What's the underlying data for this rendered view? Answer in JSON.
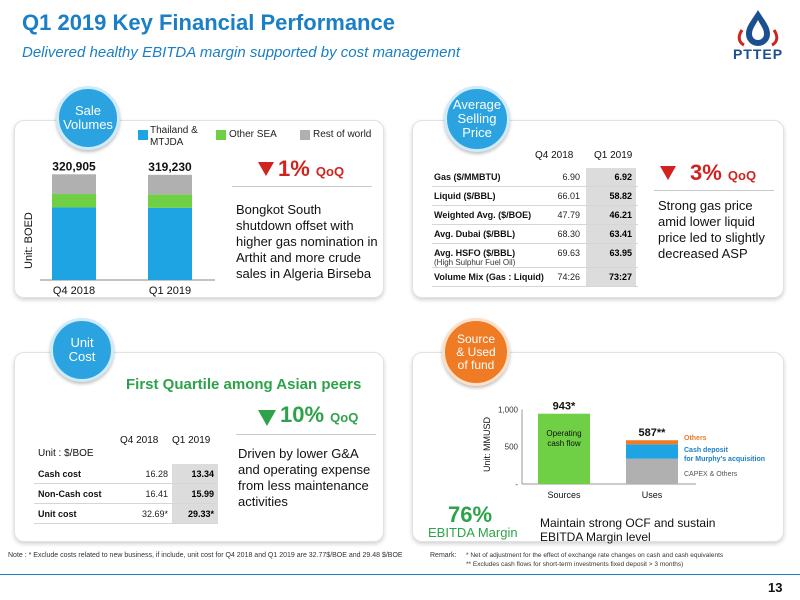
{
  "header": {
    "title": "Q1 2019 Key Financial Performance",
    "subtitle": "Delivered healthy EBITDA margin supported by cost management",
    "logo_text": "PTTEP"
  },
  "colors": {
    "accent_blue": "#1a7fc4",
    "orange": "#ef7b24",
    "down_red": "#d0231f",
    "down_green": "#2ea24a"
  },
  "sale_volumes": {
    "badge": [
      "Sale",
      "Volumes"
    ],
    "unit": "Unit: BOED",
    "legend": [
      "Thailand & MTJDA",
      "Other SEA",
      "Rest of world"
    ],
    "qoq_value": "1%",
    "qoq_label": "QoQ",
    "text": "Bongkot South shutdown offset with higher gas nomination in Arthit and more crude sales in Algeria Birseba"
  },
  "asp": {
    "badge": [
      "Average",
      "Selling",
      "Price"
    ],
    "col_q4": "Q4 2018",
    "col_q1": "Q1 2019",
    "rows": [
      {
        "label": "Gas ($/MMBTU)",
        "sub": "",
        "q4": "6.90",
        "q1": "6.92"
      },
      {
        "label": "Liquid ($/BBL)",
        "sub": "",
        "q4": "66.01",
        "q1": "58.82"
      },
      {
        "label": "Weighted Avg. ($/BOE)",
        "sub": "",
        "q4": "47.79",
        "q1": "46.21"
      },
      {
        "label": "Avg. Dubai ($/BBL)",
        "sub": "",
        "q4": "68.30",
        "q1": "63.41"
      },
      {
        "label": "Avg. HSFO ($/BBL)",
        "sub": "(High Sulphur Fuel Oil)",
        "q4": "69.63",
        "q1": "63.95"
      },
      {
        "label": "Volume Mix (Gas : Liquid)",
        "sub": "",
        "q4": "74:26",
        "q1": "73:27"
      }
    ],
    "qoq_value": "3%",
    "qoq_label": "QoQ",
    "text": "Strong gas price amid lower liquid price led to slightly decreased ASP"
  },
  "unit_cost": {
    "badge": [
      "Unit",
      "Cost"
    ],
    "headline": "First Quartile among Asian peers",
    "unit": "Unit : $/BOE",
    "col_q4": "Q4 2018",
    "col_q1": "Q1 2019",
    "rows": [
      {
        "label": "Cash cost",
        "q4": "16.28",
        "q1": "13.34"
      },
      {
        "label": "Non-Cash cost",
        "q4": "16.41",
        "q1": "15.99"
      },
      {
        "label": "Unit cost",
        "q4": "32.69*",
        "q1": "29.33*"
      }
    ],
    "qoq_value": "10%",
    "qoq_label": "QoQ",
    "text": "Driven by lower G&A and operating expense from less maintenance activities",
    "note": "Note : * Exclude costs related to new business, if include, unit cost for Q4 2018 and Q1 2019 are 32.77$/BOE and 29.48 $/BOE"
  },
  "source_use": {
    "badge": [
      "Source",
      "& Used",
      "of fund"
    ],
    "unit": "Unit: MMUSD",
    "ebitda_value": "76%",
    "ebitda_label": "EBITDA Margin",
    "text": "Maintain strong OCF and sustain EBITDA Margin level",
    "remark_label": "Remark:",
    "remarks": [
      "* Net of adjustment for the effect of exchange rate changes on cash and cash equivalents",
      "** Excludes cash flows for short-term investments fixed deposit > 3 months)"
    ]
  },
  "page_number": "13",
  "chart_data": [
    {
      "type": "bar",
      "title": "",
      "ylabel": "Unit: BOED",
      "categories": [
        "Q4 2018",
        "Q1 2019"
      ],
      "totals": [
        "320,905",
        "319,230"
      ],
      "series": [
        {
          "name": "Thailand & MTJDA",
          "color": "#1ea4e3",
          "values": [
            220000,
            219000
          ]
        },
        {
          "name": "Other SEA",
          "color": "#6fcf45",
          "values": [
            41000,
            41000
          ]
        },
        {
          "name": "Rest of world",
          "color": "#b0b0b0",
          "values": [
            59905,
            59230
          ]
        }
      ],
      "ylim": [
        0,
        340000
      ],
      "legend": "top"
    },
    {
      "type": "bar",
      "title": "",
      "ylabel": "Unit: MMUSD",
      "categories": [
        "Sources",
        "Uses"
      ],
      "yticks": [
        "-",
        "500",
        "1,000"
      ],
      "ylim": [
        0,
        1100
      ],
      "value_labels": [
        "943*",
        "587**"
      ],
      "series": [
        {
          "name": "Operating cash flow",
          "color": "#6fcf45",
          "values": [
            943,
            0
          ]
        },
        {
          "name": "CAPEX & Others",
          "color": "#b0b0b0",
          "values": [
            0,
            340
          ]
        },
        {
          "name": "Cash deposit for Murphy's acquisition",
          "color": "#1ea4e3",
          "values": [
            0,
            192
          ]
        },
        {
          "name": "Others",
          "color": "#ef7b24",
          "values": [
            0,
            55
          ]
        }
      ],
      "segment_labels": {
        "sources": "Operating cash flow",
        "uses": [
          "Others",
          "Cash deposit for Murphy's acquisition",
          "CAPEX & Others"
        ]
      }
    }
  ]
}
